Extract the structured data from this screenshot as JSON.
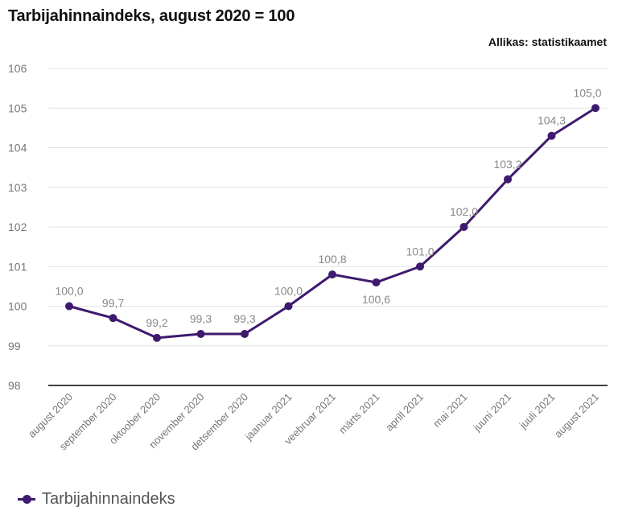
{
  "title": "Tarbijahinnaindeks, august 2020 = 100",
  "source": "Allikas: statistikaamet",
  "colors": {
    "series": "#3d1a6e",
    "grid": "#e2e2e2",
    "axis": "#000000"
  },
  "chart_data": {
    "type": "line",
    "title": "Tarbijahinnaindeks, august 2020 = 100",
    "categories": [
      "august 2020",
      "september 2020",
      "oktoober 2020",
      "november 2020",
      "detsember 2020",
      "jaanuar 2021",
      "veebruar 2021",
      "märts 2021",
      "aprill 2021",
      "mai 2021",
      "juuni 2021",
      "juuli 2021",
      "august 2021"
    ],
    "series": [
      {
        "name": "Tarbijahinnaindeks",
        "values": [
          100.0,
          99.7,
          99.2,
          99.3,
          99.3,
          100.0,
          100.8,
          100.6,
          101.0,
          102.0,
          103.2,
          104.3,
          105.0
        ],
        "labels": [
          "100,0",
          "99,7",
          "99,2",
          "99,3",
          "99,3",
          "100,0",
          "100,8",
          "100,6",
          "101,0",
          "102,0",
          "103,2",
          "104,3",
          "105,0"
        ]
      }
    ],
    "yticks": [
      98,
      99,
      100,
      101,
      102,
      103,
      104,
      105,
      106
    ],
    "ylim": [
      98,
      106
    ],
    "grid": true,
    "legend": "bottom-left"
  }
}
